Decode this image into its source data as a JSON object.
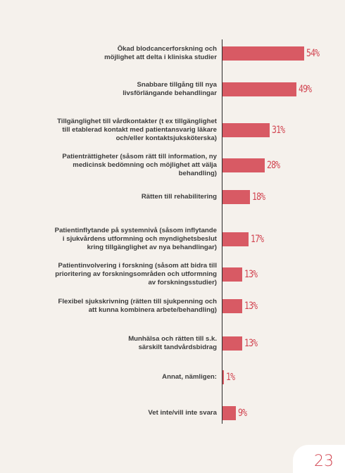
{
  "chart_data": {
    "type": "bar",
    "orientation": "horizontal",
    "categories": [
      "Ökad blodcancerforskning och\nmöjlighet att delta i kliniska studier",
      "Snabbare tillgång till nya\nlivsförlängande behandlingar",
      "Tillgänglighet till vårdkontakter (t ex tillgänglighet\ntill etablerad kontakt med patientansvarig läkare\noch/eller kontaktsjuksköterska)",
      "Patienträttigheter (såsom rätt till information, ny\nmedicinsk bedömning och möjlighet att välja\nbehandling)",
      "Rätten till rehabilitering",
      "Patientinflytande på systemnivå (såsom inflytande\ni sjukvårdens utformning och myndighetsbeslut\nkring tillgänglighet av nya behandlingar)",
      "Patientinvolvering i forskning (såsom att bidra till\nprioritering av forskningsområden och utformning\nav forskningsstudier)",
      "Flexibel sjukskrivning (rätten till sjukpenning och\natt kunna kombinera arbete/behandling)",
      "Munhälsa och rätten till s.k.\nsärskilt tandvårdsbidrag",
      "Annat, nämligen:",
      "Vet inte/vill inte svara"
    ],
    "values": [
      54,
      49,
      31,
      28,
      18,
      17,
      13,
      13,
      13,
      1,
      9
    ],
    "value_labels": [
      "54%",
      "49%",
      "31%",
      "28%",
      "18%",
      "17%",
      "13%",
      "13%",
      "13%",
      "1%",
      "9%"
    ],
    "bar_color": "#d85a64",
    "label_color": "#d24652",
    "xlim": [
      0,
      54
    ]
  },
  "page": {
    "number": "23"
  }
}
